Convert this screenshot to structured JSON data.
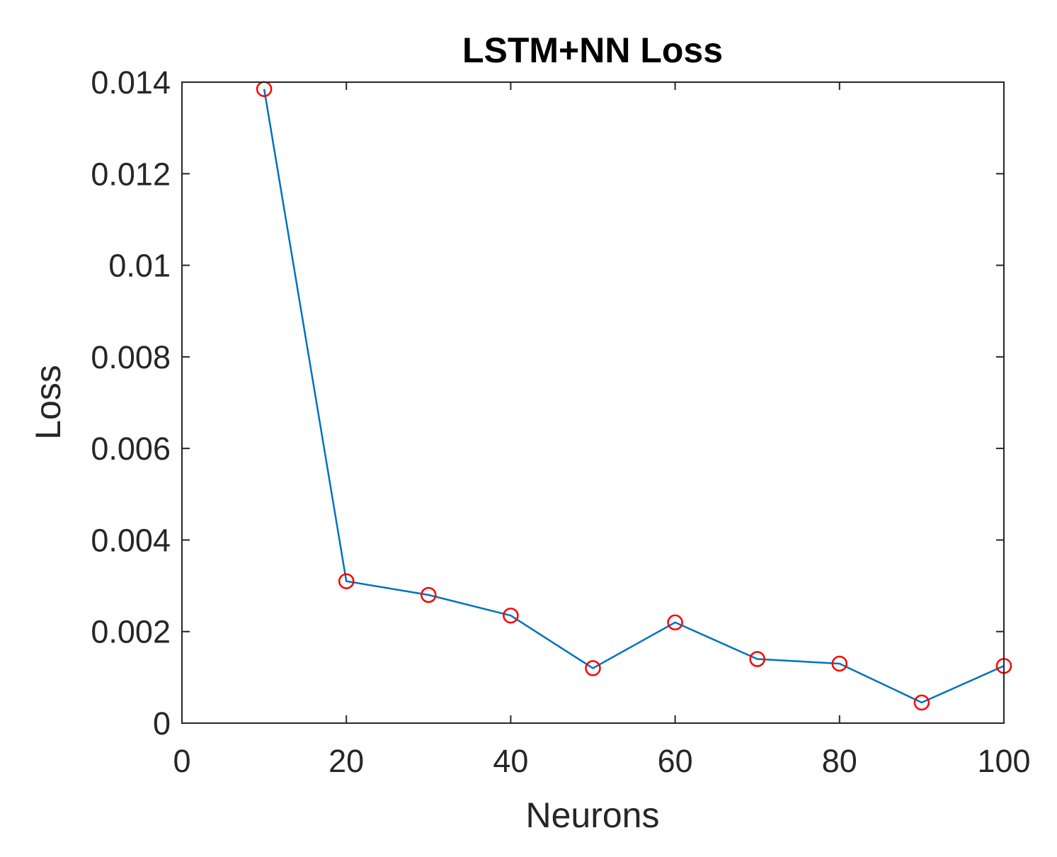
{
  "chart_data": {
    "type": "line",
    "title": "LSTM+NN Loss",
    "xlabel": "Neurons",
    "ylabel": "Loss",
    "xlim": [
      0,
      100
    ],
    "ylim": [
      0,
      0.014
    ],
    "x_ticks": [
      "0",
      "20",
      "40",
      "60",
      "80",
      "100"
    ],
    "y_ticks": [
      "0",
      "0.002",
      "0.004",
      "0.006",
      "0.008",
      "0.01",
      "0.012",
      "0.014"
    ],
    "grid": false,
    "series": [
      {
        "x": [
          10,
          20,
          30,
          40,
          50,
          60,
          70,
          80,
          90,
          100
        ],
        "y": [
          0.01385,
          0.0031,
          0.0028,
          0.00235,
          0.0012,
          0.0022,
          0.0014,
          0.0013,
          0.00045,
          0.00125
        ],
        "line_color": "#0072BD",
        "marker": "circle",
        "marker_color": "#FF0000"
      }
    ]
  }
}
